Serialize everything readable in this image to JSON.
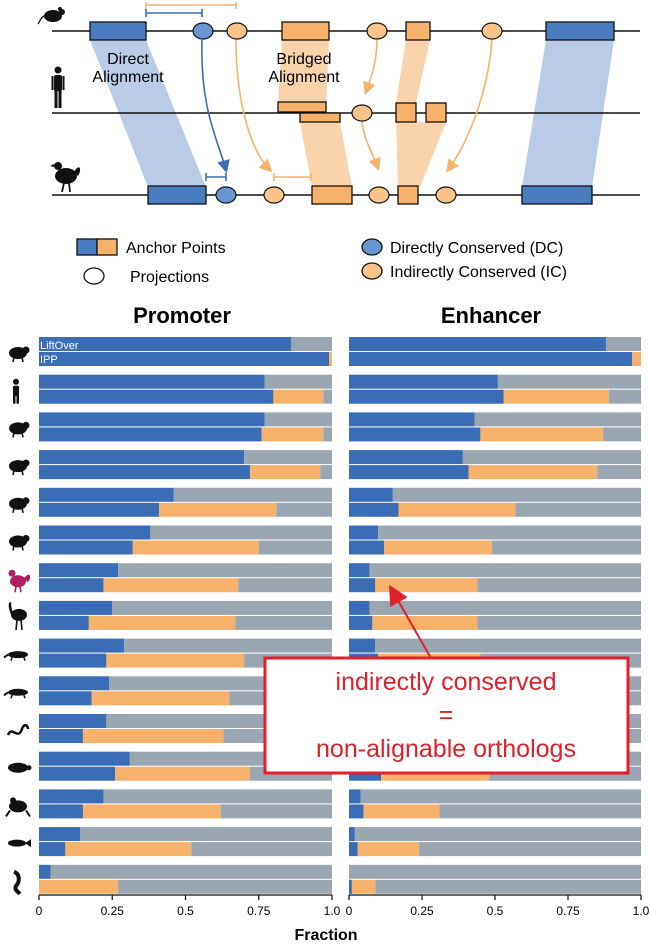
{
  "colors": {
    "direct": "#3a6db5",
    "direct_fill": "#4a7cc0",
    "indirect": "#f6b26b",
    "nonconserved": "#9aa7b2",
    "bridge_blue": "#b9cbe6",
    "bridge_orange": "#f8d3ab",
    "callout": "#e0202a",
    "chicken": "#b01f5e"
  },
  "schematic": {
    "direct_alignment_label": [
      "Direct",
      "Alignment"
    ],
    "bridged_alignment_label": [
      "Bridged",
      "Alignment"
    ],
    "species_icons": [
      "mouse-icon",
      "human-icon",
      "chicken-icon"
    ]
  },
  "legend": {
    "anchor_points": "Anchor Points",
    "projections": "Projections",
    "directly_conserved": "Directly Conserved (DC)",
    "indirectly_conserved": "Indirectly Conserved (IC)"
  },
  "callout": {
    "lines": [
      "indirectly conserved",
      "=",
      "non-alignable orthologs"
    ]
  },
  "chart_data": [
    {
      "type": "bar",
      "orientation": "horizontal-stacked",
      "title": "Promoter",
      "xlabel": "Fraction",
      "xlim": [
        0,
        1
      ],
      "xticks": [
        "0",
        "0.25",
        "0.5",
        "0.75",
        "1.0"
      ],
      "row_labels": [
        "LiftOver",
        "IPP"
      ],
      "species_icons": [
        "mouse-icon",
        "human-icon",
        "pig-icon",
        "mole-icon",
        "opossum-icon",
        "platypus-icon",
        "chicken-icon",
        "emu-icon",
        "alligator-icon",
        "lizard-icon",
        "snake-icon",
        "turtle-icon",
        "frog-icon",
        "fish-icon",
        "lamprey-icon"
      ],
      "series": [
        {
          "name": "LiftOver",
          "dc": [
            0.86,
            0.77,
            0.77,
            0.7,
            0.46,
            0.38,
            0.27,
            0.25,
            0.29,
            0.24,
            0.23,
            0.31,
            0.22,
            0.14,
            0.04
          ],
          "ic": [
            0,
            0,
            0,
            0,
            0,
            0,
            0,
            0,
            0,
            0,
            0,
            0,
            0,
            0,
            0
          ]
        },
        {
          "name": "IPP",
          "dc": [
            0.99,
            0.8,
            0.76,
            0.72,
            0.41,
            0.32,
            0.22,
            0.17,
            0.23,
            0.18,
            0.15,
            0.26,
            0.15,
            0.09,
            0.0
          ],
          "ic": [
            0.01,
            0.17,
            0.21,
            0.24,
            0.4,
            0.43,
            0.46,
            0.5,
            0.47,
            0.47,
            0.48,
            0.46,
            0.47,
            0.43,
            0.27
          ]
        }
      ]
    },
    {
      "type": "bar",
      "orientation": "horizontal-stacked",
      "title": "Enhancer",
      "xlabel": "Fraction",
      "xlim": [
        0,
        1
      ],
      "xticks": [
        "0",
        "0.25",
        "0.5",
        "0.75",
        "1.0"
      ],
      "series": [
        {
          "name": "LiftOver",
          "dc": [
            0.88,
            0.51,
            0.43,
            0.39,
            0.15,
            0.1,
            0.07,
            0.07,
            0.09,
            0.08,
            0.07,
            0.11,
            0.04,
            0.02,
            0.0
          ],
          "ic": [
            0,
            0,
            0,
            0,
            0,
            0,
            0,
            0,
            0,
            0,
            0,
            0,
            0,
            0,
            0
          ]
        },
        {
          "name": "IPP",
          "dc": [
            0.97,
            0.53,
            0.45,
            0.41,
            0.17,
            0.12,
            0.09,
            0.08,
            0.1,
            0.09,
            0.08,
            0.11,
            0.05,
            0.03,
            0.01
          ],
          "ic": [
            0.03,
            0.36,
            0.42,
            0.44,
            0.4,
            0.37,
            0.35,
            0.36,
            0.35,
            0.36,
            0.36,
            0.37,
            0.26,
            0.21,
            0.08
          ]
        }
      ]
    }
  ]
}
